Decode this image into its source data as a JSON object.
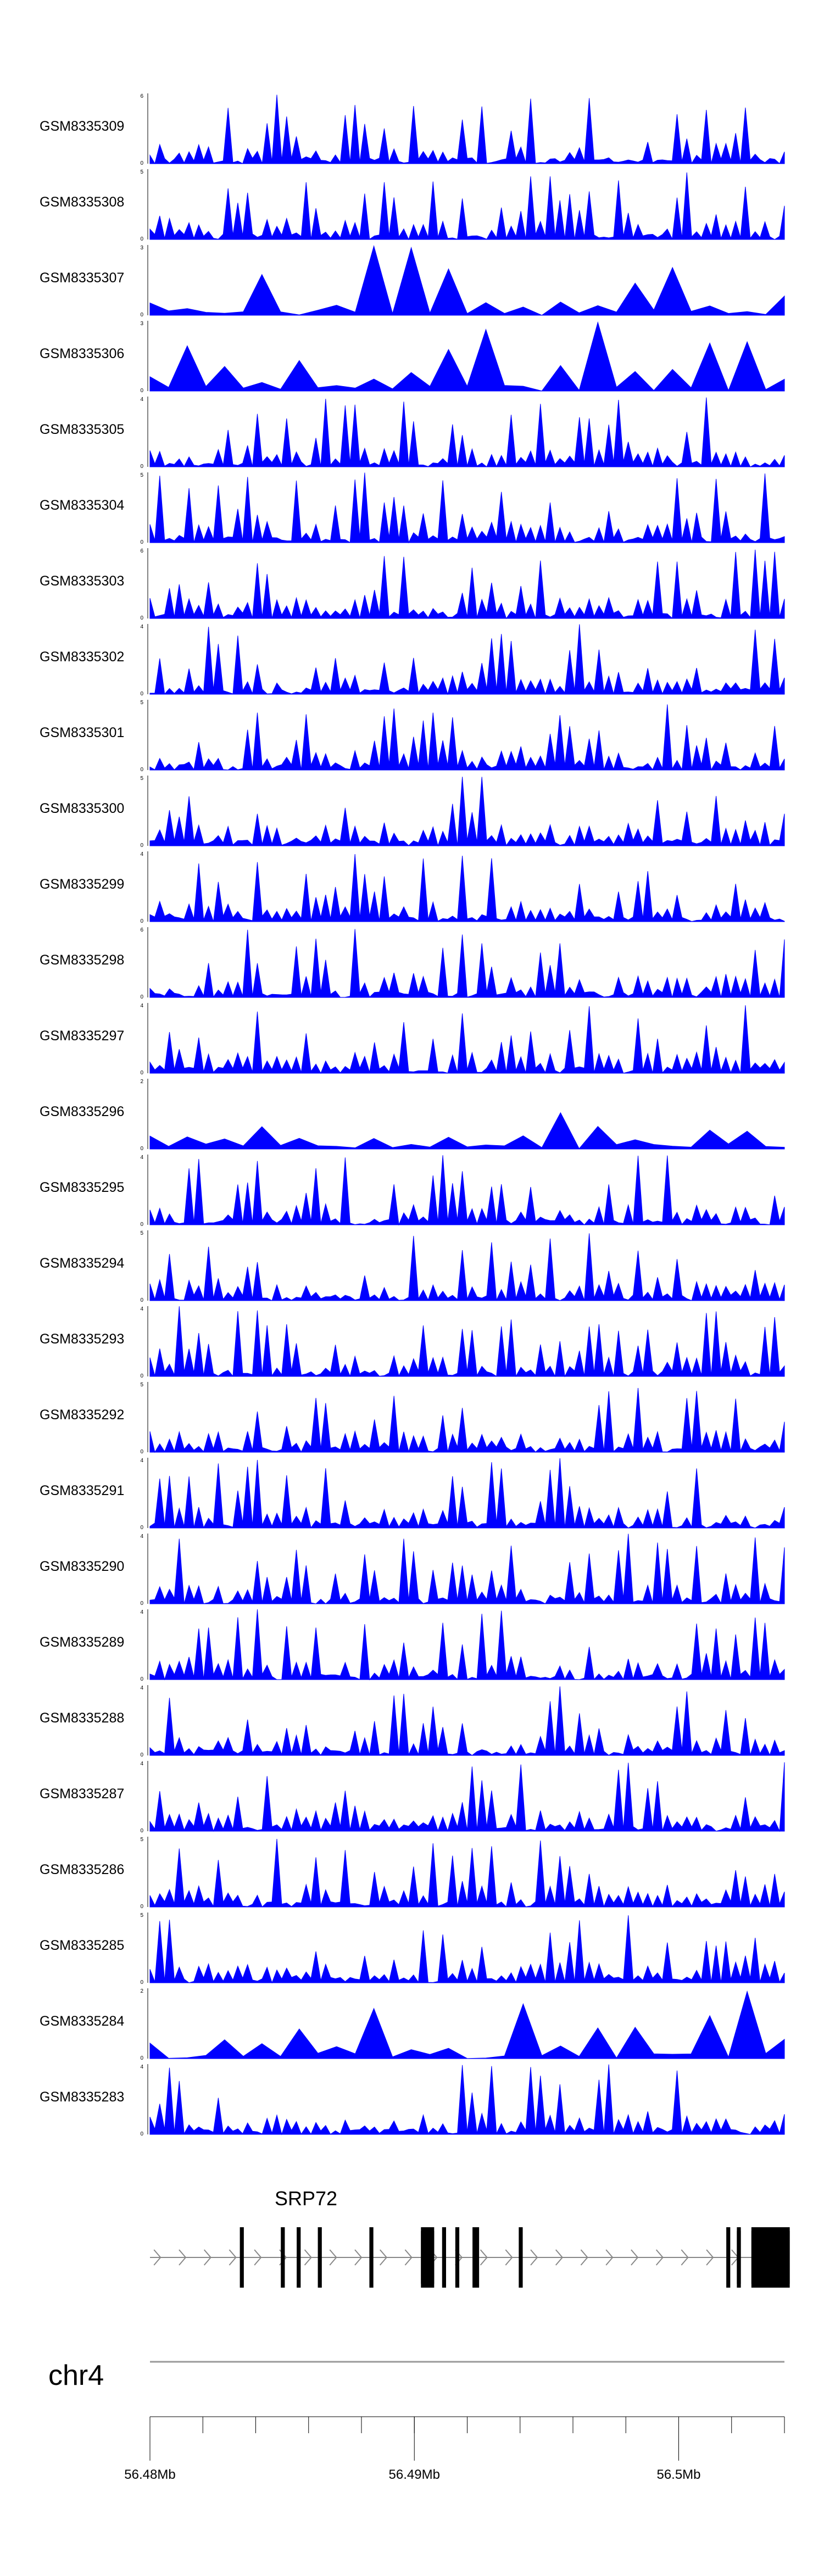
{
  "colors": {
    "signal": "#0000ff",
    "gene": "#000000",
    "axis": "#000000",
    "intron": "#888888",
    "ideogram": "#999999"
  },
  "chart_data": {
    "type": "area",
    "title": "",
    "genome_region": {
      "chromosome": "chr4",
      "start_mb": 56.48,
      "end_mb": 56.504
    },
    "x_axis": {
      "tick_labels": [
        "56.48Mb",
        "56.49Mb",
        "56.5Mb"
      ],
      "major_ticks_mb": [
        56.48,
        56.49,
        56.5
      ],
      "minor_tick_step_mb": 0.002
    },
    "tracks": [
      {
        "name": "GSM8335309",
        "ylim": [
          0,
          6
        ],
        "ymax_label": "6",
        "ymin_label": "0",
        "seed": 309
      },
      {
        "name": "GSM8335308",
        "ylim": [
          0,
          5
        ],
        "ymax_label": "5",
        "ymin_label": "0",
        "seed": 308
      },
      {
        "name": "GSM8335307",
        "ylim": [
          0,
          3
        ],
        "ymax_label": "3",
        "ymin_label": "0",
        "seed": 307
      },
      {
        "name": "GSM8335306",
        "ylim": [
          0,
          3
        ],
        "ymax_label": "3",
        "ymin_label": "0",
        "seed": 306
      },
      {
        "name": "GSM8335305",
        "ylim": [
          0,
          4
        ],
        "ymax_label": "4",
        "ymin_label": "0",
        "seed": 305
      },
      {
        "name": "GSM8335304",
        "ylim": [
          0,
          5
        ],
        "ymax_label": "5",
        "ymin_label": "0",
        "seed": 304
      },
      {
        "name": "GSM8335303",
        "ylim": [
          0,
          6
        ],
        "ymax_label": "6",
        "ymin_label": "0",
        "seed": 303
      },
      {
        "name": "GSM8335302",
        "ylim": [
          0,
          4
        ],
        "ymax_label": "4",
        "ymin_label": "0",
        "seed": 302
      },
      {
        "name": "GSM8335301",
        "ylim": [
          0,
          5
        ],
        "ymax_label": "5",
        "ymin_label": "0",
        "seed": 301
      },
      {
        "name": "GSM8335300",
        "ylim": [
          0,
          5
        ],
        "ymax_label": "5",
        "ymin_label": "0",
        "seed": 300
      },
      {
        "name": "GSM8335299",
        "ylim": [
          0,
          4
        ],
        "ymax_label": "4",
        "ymin_label": "0",
        "seed": 299
      },
      {
        "name": "GSM8335298",
        "ylim": [
          0,
          6
        ],
        "ymax_label": "6",
        "ymin_label": "0",
        "seed": 298
      },
      {
        "name": "GSM8335297",
        "ylim": [
          0,
          4
        ],
        "ymax_label": "4",
        "ymin_label": "0",
        "seed": 297
      },
      {
        "name": "GSM8335296",
        "ylim": [
          0,
          2
        ],
        "ymax_label": "2",
        "ymin_label": "0",
        "seed": 296
      },
      {
        "name": "GSM8335295",
        "ylim": [
          0,
          4
        ],
        "ymax_label": "4",
        "ymin_label": "0",
        "seed": 295
      },
      {
        "name": "GSM8335294",
        "ylim": [
          0,
          5
        ],
        "ymax_label": "5",
        "ymin_label": "0",
        "seed": 294
      },
      {
        "name": "GSM8335293",
        "ylim": [
          0,
          4
        ],
        "ymax_label": "4",
        "ymin_label": "0",
        "seed": 293
      },
      {
        "name": "GSM8335292",
        "ylim": [
          0,
          5
        ],
        "ymax_label": "5",
        "ymin_label": "0",
        "seed": 292
      },
      {
        "name": "GSM8335291",
        "ylim": [
          0,
          4
        ],
        "ymax_label": "4",
        "ymin_label": "0",
        "seed": 291
      },
      {
        "name": "GSM8335290",
        "ylim": [
          0,
          4
        ],
        "ymax_label": "4",
        "ymin_label": "0",
        "seed": 290
      },
      {
        "name": "GSM8335289",
        "ylim": [
          0,
          4
        ],
        "ymax_label": "4",
        "ymin_label": "0",
        "seed": 289
      },
      {
        "name": "GSM8335288",
        "ylim": [
          0,
          4
        ],
        "ymax_label": "4",
        "ymin_label": "0",
        "seed": 288
      },
      {
        "name": "GSM8335287",
        "ylim": [
          0,
          4
        ],
        "ymax_label": "4",
        "ymin_label": "0",
        "seed": 287
      },
      {
        "name": "GSM8335286",
        "ylim": [
          0,
          5
        ],
        "ymax_label": "5",
        "ymin_label": "0",
        "seed": 286
      },
      {
        "name": "GSM8335285",
        "ylim": [
          0,
          5
        ],
        "ymax_label": "5",
        "ymin_label": "0",
        "seed": 285
      },
      {
        "name": "GSM8335284",
        "ylim": [
          0,
          2
        ],
        "ymax_label": "2",
        "ymin_label": "0",
        "seed": 284
      },
      {
        "name": "GSM8335283",
        "ylim": [
          0,
          4
        ],
        "ymax_label": "4",
        "ymin_label": "0",
        "seed": 283
      }
    ],
    "gene": {
      "name": "SRP72",
      "strand": "+",
      "tx_start_mb": 56.48,
      "tx_end_mb": 56.504,
      "exons_mb": [
        [
          56.4834,
          56.48355
        ],
        [
          56.48495,
          56.4851
        ],
        [
          56.48555,
          56.4857
        ],
        [
          56.48635,
          56.4865
        ],
        [
          56.4883,
          56.48845
        ],
        [
          56.49025,
          56.49075
        ],
        [
          56.49105,
          56.4912
        ],
        [
          56.49155,
          56.4917
        ],
        [
          56.4922,
          56.49245
        ],
        [
          56.49395,
          56.4941
        ],
        [
          56.5018,
          56.50195
        ],
        [
          56.5022,
          56.50235
        ],
        [
          56.50275,
          56.5032
        ],
        [
          56.5032,
          56.5042
        ]
      ],
      "thick_exons_mb": [
        [
          56.49025,
          56.49075
        ],
        [
          56.5022,
          56.50235
        ],
        [
          56.50275,
          56.5032
        ],
        [
          56.5032,
          56.5042
        ]
      ]
    }
  }
}
